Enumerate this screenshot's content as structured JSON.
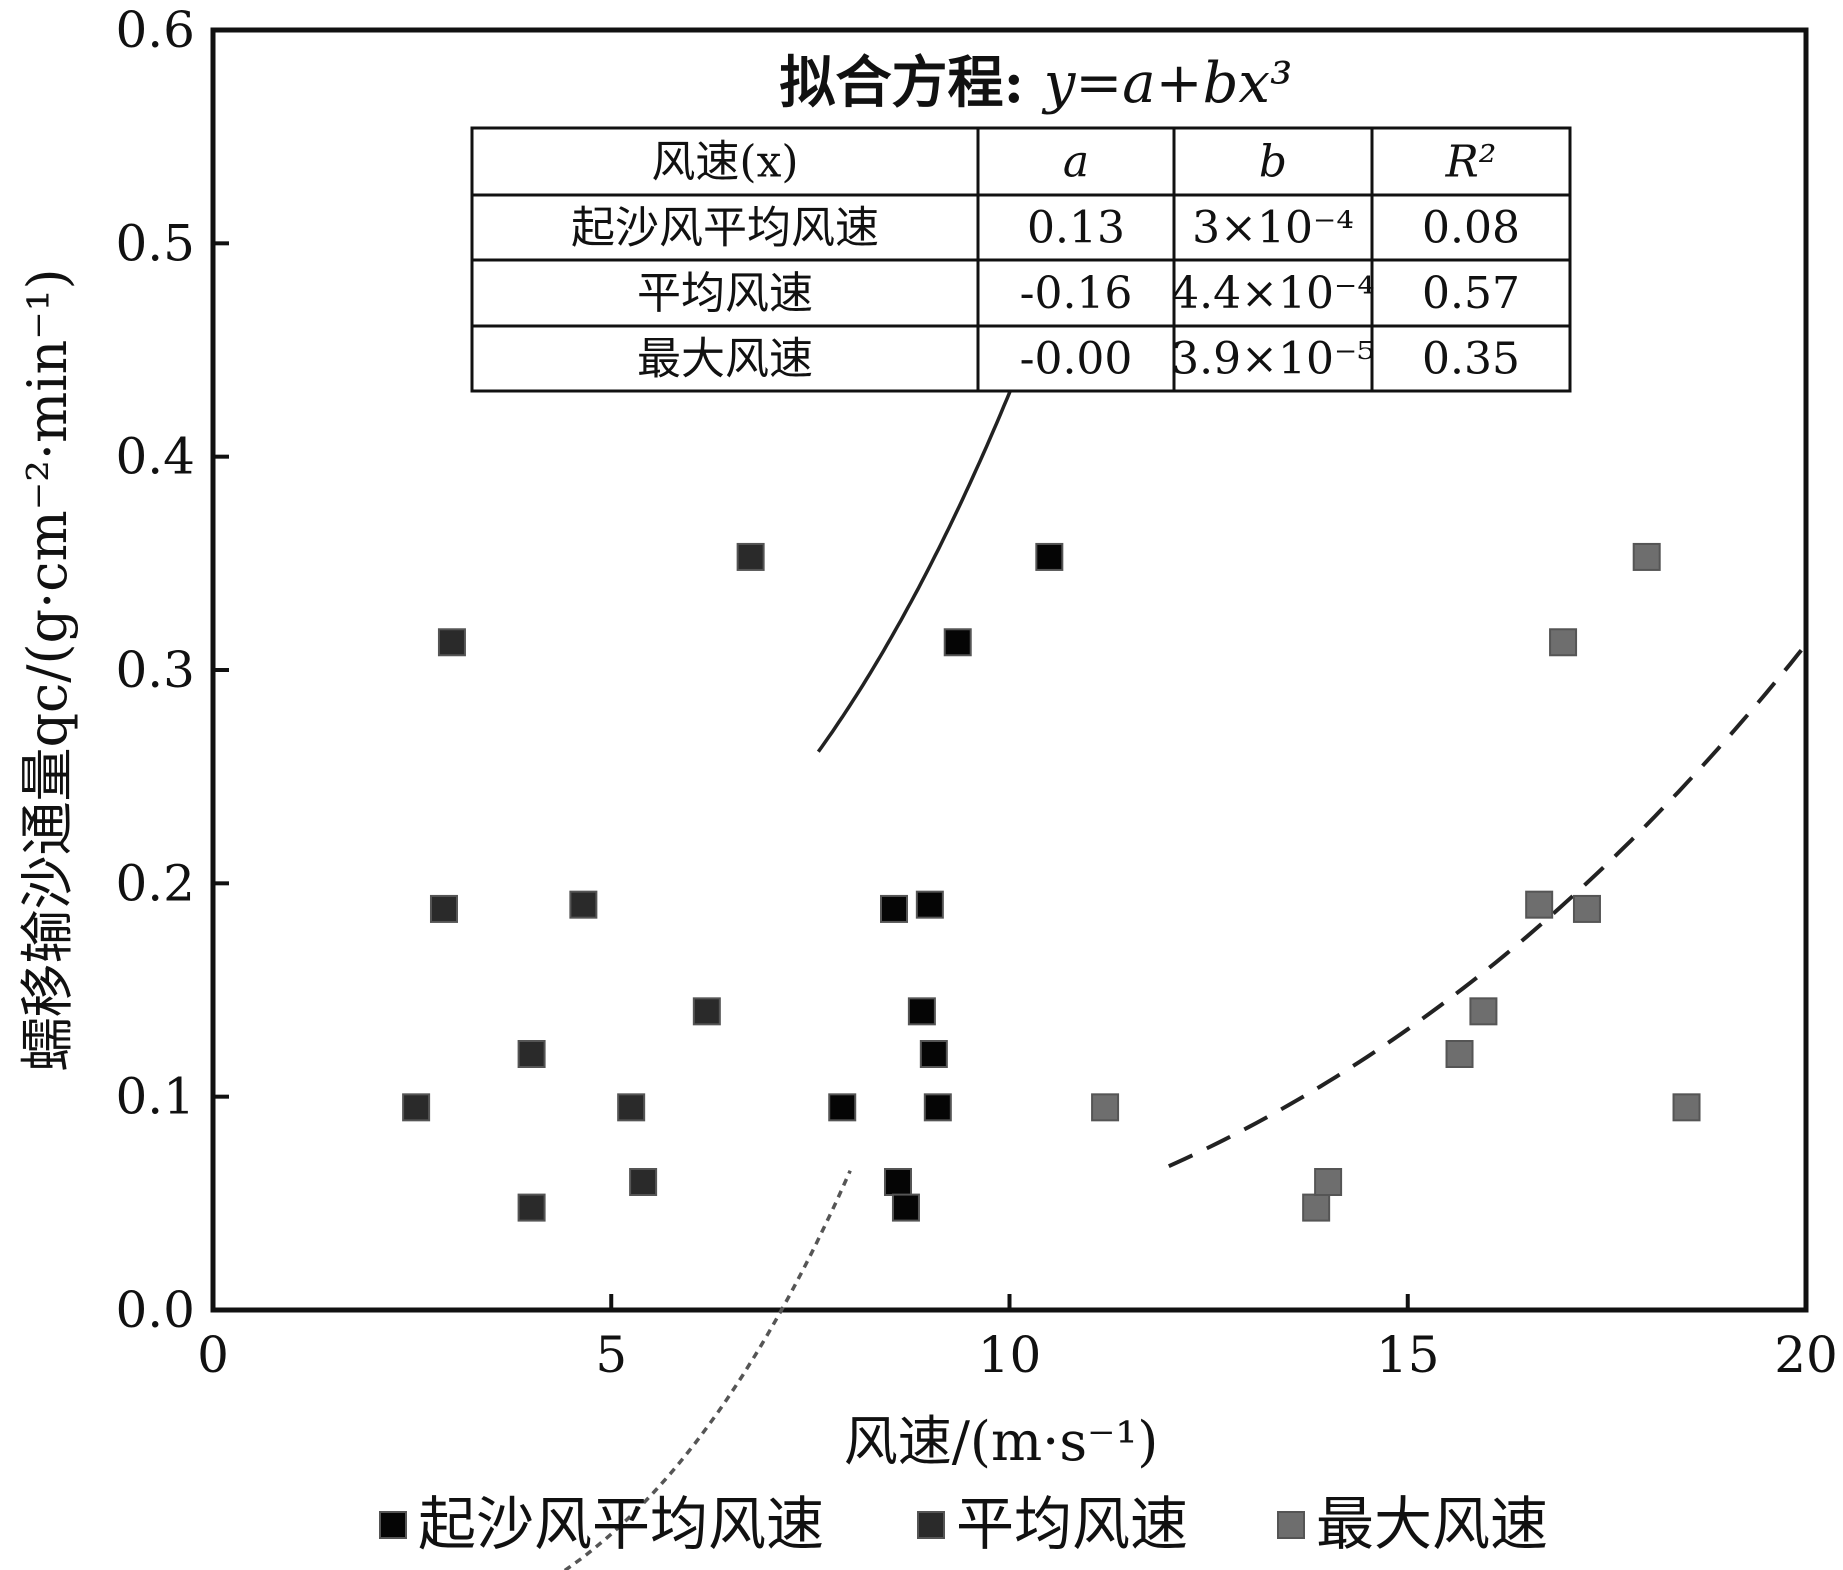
{
  "chart_data": {
    "type": "scatter",
    "xlabel": "风速/(m·s⁻¹)",
    "ylabel": "蠕移输沙通量qc/(g·cm⁻²·min⁻¹)",
    "xlim": [
      0,
      20
    ],
    "ylim": [
      0,
      0.6
    ],
    "x_ticks": [
      "0",
      "5",
      "10",
      "15",
      "20"
    ],
    "y_ticks": [
      "0.0",
      "0.1",
      "0.2",
      "0.3",
      "0.4",
      "0.5",
      "0.6"
    ],
    "grid": false,
    "legend_position": "bottom",
    "series": [
      {
        "name": "起沙风平均风速",
        "color": "#050505",
        "points": [
          [
            7.9,
            0.095
          ],
          [
            8.6,
            0.06
          ],
          [
            8.7,
            0.048
          ],
          [
            8.55,
            0.188
          ],
          [
            9.0,
            0.19
          ],
          [
            8.9,
            0.14
          ],
          [
            9.05,
            0.12
          ],
          [
            9.1,
            0.095
          ],
          [
            9.35,
            0.313
          ],
          [
            10.5,
            0.353
          ]
        ],
        "fit": {
          "a": 0.13,
          "b": 0.0003,
          "x_range": [
            7.6,
            11.05
          ],
          "line": "solid"
        }
      },
      {
        "name": "平均风速",
        "color": "#2a2a2a",
        "points": [
          [
            2.55,
            0.095
          ],
          [
            2.9,
            0.188
          ],
          [
            3.0,
            0.313
          ],
          [
            4.0,
            0.12
          ],
          [
            4.0,
            0.048
          ],
          [
            4.65,
            0.19
          ],
          [
            5.25,
            0.095
          ],
          [
            5.4,
            0.06
          ],
          [
            6.2,
            0.14
          ],
          [
            6.75,
            0.353
          ]
        ],
        "fit": {
          "a": -0.16,
          "b": 0.00044,
          "x_range": [
            2.0,
            8.0
          ],
          "line": "dotted"
        }
      },
      {
        "name": "最大风速",
        "color": "#6e6e6e",
        "points": [
          [
            11.2,
            0.095
          ],
          [
            13.85,
            0.048
          ],
          [
            14.0,
            0.06
          ],
          [
            15.65,
            0.12
          ],
          [
            15.95,
            0.14
          ],
          [
            16.65,
            0.19
          ],
          [
            17.25,
            0.188
          ],
          [
            16.95,
            0.313
          ],
          [
            18.0,
            0.353
          ],
          [
            18.5,
            0.095
          ]
        ],
        "fit": {
          "a": -0.0,
          "b": 3.9e-05,
          "x_range": [
            12.0,
            20.0
          ],
          "line": "dashed"
        }
      }
    ],
    "annotation_table": {
      "title_prefix": "拟合方程: ",
      "title_equation": "y=a+bx³",
      "headers": [
        "风速(x)",
        "a",
        "b",
        "R²"
      ],
      "rows": [
        [
          "起沙风平均风速",
          "0.13",
          "3×10⁻⁴",
          "0.08"
        ],
        [
          "平均风速",
          "-0.16",
          "4.4×10⁻⁴",
          "0.57"
        ],
        [
          "最大风速",
          "-0.00",
          "3.9×10⁻⁵",
          "0.35"
        ]
      ]
    }
  }
}
